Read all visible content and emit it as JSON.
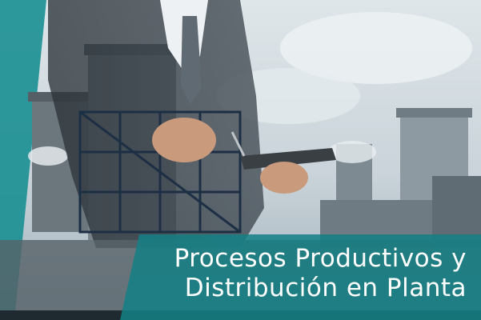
{
  "title": {
    "line1": "Procesos Productivos y",
    "line2": "Distribución en Planta"
  },
  "scene": {
    "description_icon": "businessman-tablet-factory-photo",
    "accent_color": "#17858a"
  }
}
